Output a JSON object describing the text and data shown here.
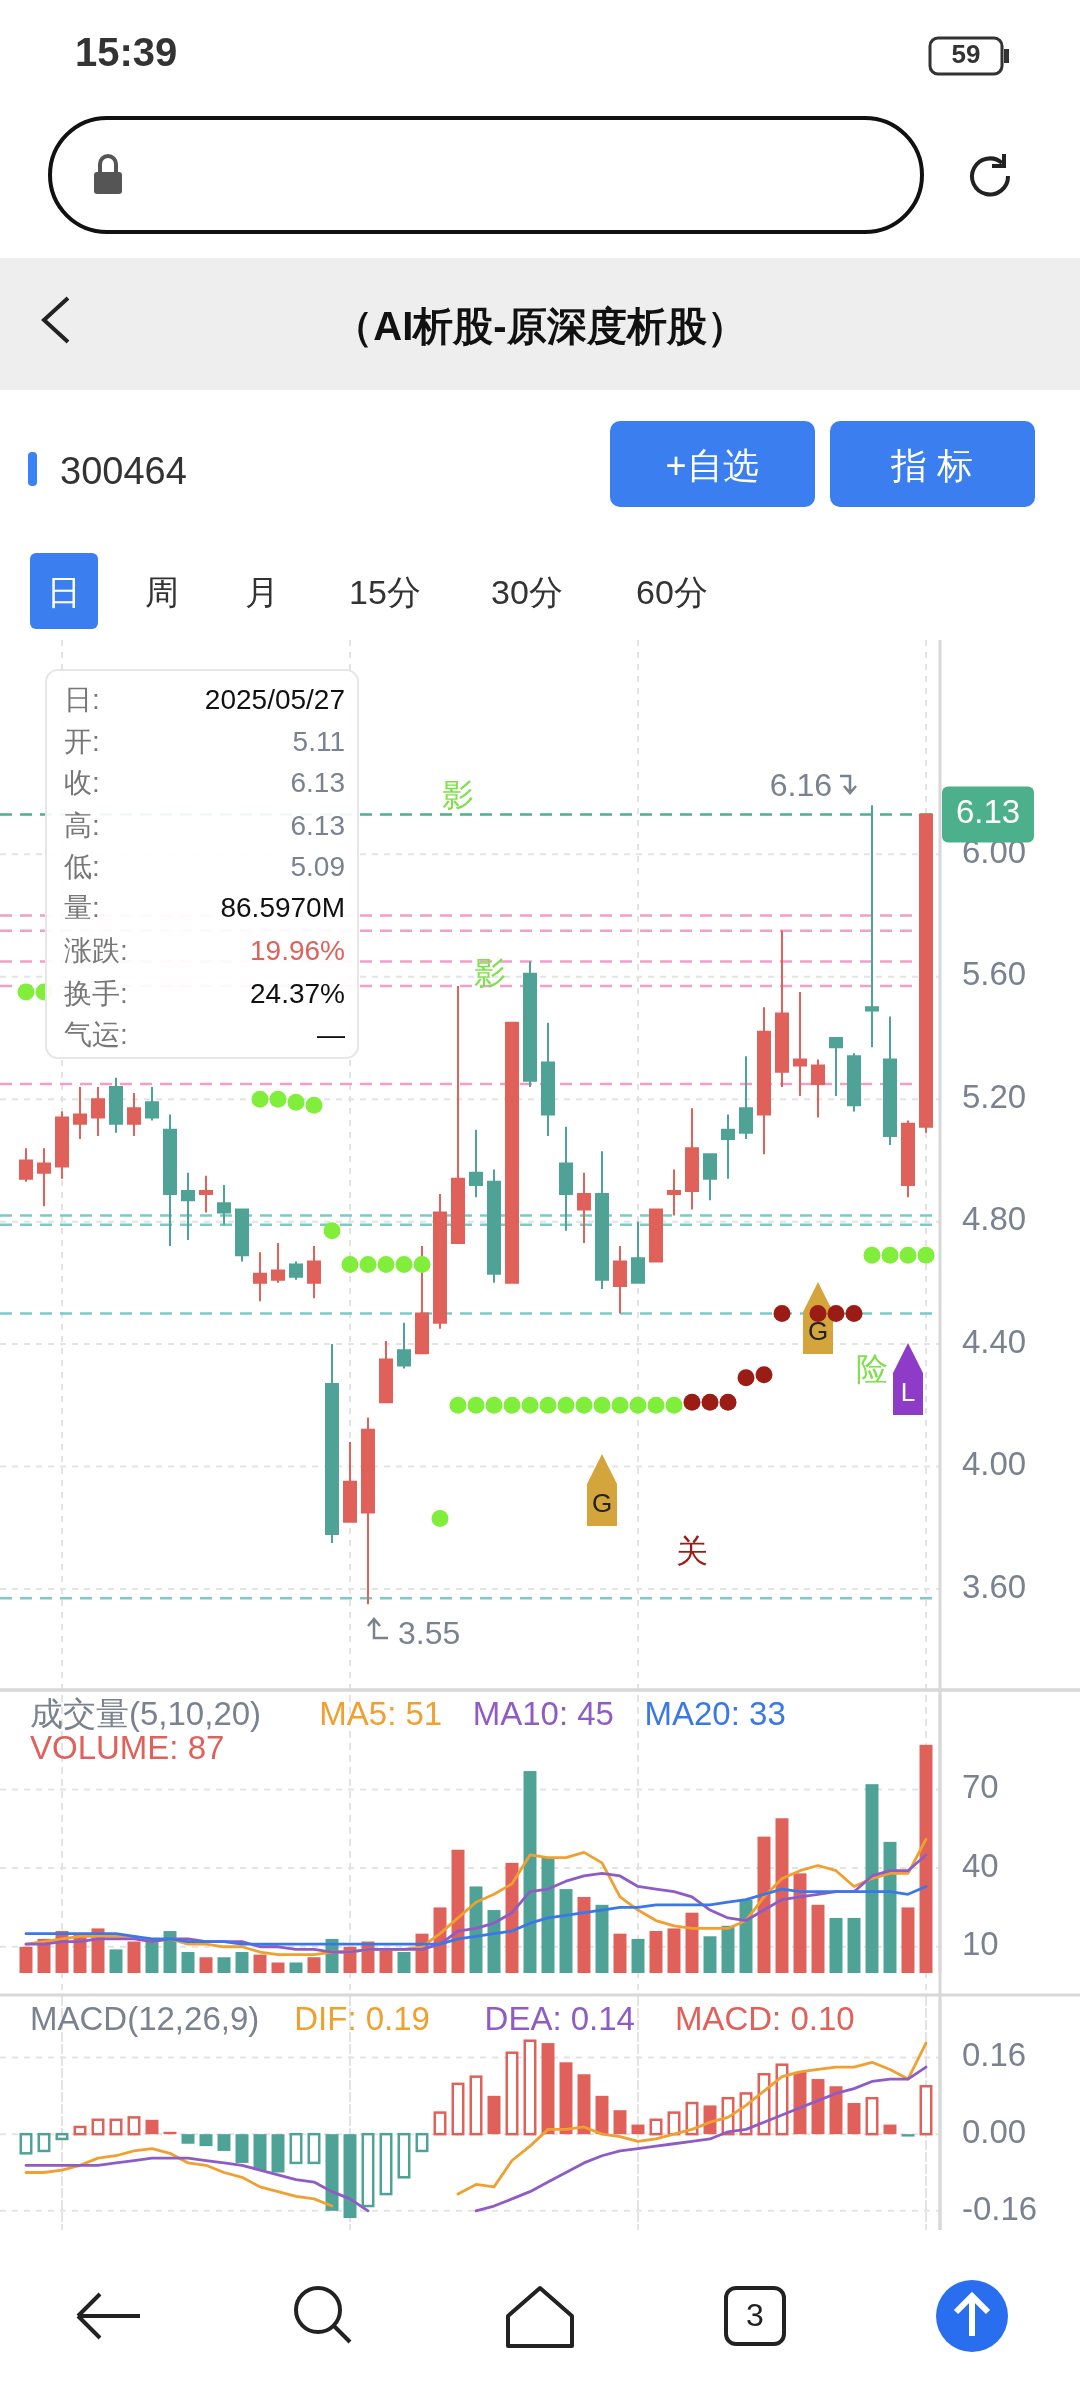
{
  "chart_data": [
    {
      "type": "other",
      "title": "（AI析股-原深度析股）",
      "annotations": [
        "15:39",
        "59",
        "300464",
        "+自选",
        "指 标",
        "日",
        "周",
        "月",
        "15分",
        "30分",
        "60分",
        "日:",
        "2025/05/27",
        "开:",
        "5.11",
        "收:",
        "6.13",
        "高:",
        "6.13",
        "低:",
        "5.09",
        "量:",
        "86.5970M",
        "涨跌:",
        "19.96%",
        "换手:",
        "24.37%",
        "气运:",
        "—",
        "3"
      ]
    },
    {
      "type": "candlestick",
      "categories": [
        null,
        null,
        null,
        null,
        null,
        null,
        null,
        null,
        null,
        null,
        null,
        null,
        null,
        null,
        null,
        null,
        null,
        null,
        null,
        null,
        null,
        null,
        null,
        null,
        null,
        null,
        null,
        null,
        null,
        null,
        null,
        null,
        null,
        null,
        null,
        null,
        null,
        null,
        null,
        null,
        null,
        null,
        null,
        null,
        null,
        null,
        null,
        null,
        null,
        null,
        null
      ],
      "ohlc": [
        [
          4.94,
          5.04,
          4.93,
          5.0
        ],
        [
          4.96,
          5.04,
          4.85,
          4.99
        ],
        [
          4.98,
          5.16,
          4.94,
          5.14
        ],
        [
          5.12,
          5.24,
          5.07,
          5.15
        ],
        [
          5.14,
          5.24,
          5.08,
          5.2
        ],
        [
          5.24,
          5.27,
          5.09,
          5.12
        ],
        [
          5.12,
          5.22,
          5.08,
          5.17
        ],
        [
          5.19,
          5.24,
          5.13,
          5.14
        ],
        [
          5.1,
          5.15,
          4.72,
          4.89
        ],
        [
          4.9,
          4.96,
          4.74,
          4.87
        ],
        [
          4.89,
          4.95,
          4.83,
          4.9
        ],
        [
          4.86,
          4.92,
          4.79,
          4.83
        ],
        [
          4.84,
          4.84,
          4.67,
          4.69
        ],
        [
          4.6,
          4.7,
          4.54,
          4.63
        ],
        [
          4.61,
          4.73,
          4.6,
          4.64
        ],
        [
          4.66,
          4.67,
          4.61,
          4.62
        ],
        [
          4.6,
          4.72,
          4.55,
          4.67
        ],
        [
          4.27,
          4.4,
          3.75,
          3.78
        ],
        [
          3.82,
          4.08,
          3.82,
          3.95
        ],
        [
          3.85,
          4.16,
          3.55,
          4.12
        ],
        [
          4.21,
          4.41,
          4.21,
          4.35
        ],
        [
          4.38,
          4.47,
          4.32,
          4.33
        ],
        [
          4.37,
          4.72,
          4.37,
          4.5
        ],
        [
          4.47,
          4.89,
          4.45,
          4.83
        ],
        [
          4.73,
          5.57,
          4.73,
          4.94
        ],
        [
          4.96,
          5.1,
          4.88,
          4.92
        ],
        [
          4.93,
          4.97,
          4.6,
          4.63
        ],
        [
          4.6,
          5.45,
          4.6,
          5.45
        ],
        [
          5.61,
          5.65,
          5.24,
          5.26
        ],
        [
          5.32,
          5.45,
          5.08,
          5.15
        ],
        [
          4.99,
          5.11,
          4.77,
          4.89
        ],
        [
          4.84,
          4.96,
          4.73,
          4.89
        ],
        [
          4.89,
          5.03,
          4.58,
          4.61
        ],
        [
          4.59,
          4.72,
          4.5,
          4.67
        ],
        [
          4.68,
          4.8,
          4.6,
          4.6
        ],
        [
          4.67,
          4.84,
          4.67,
          4.84
        ],
        [
          4.89,
          4.97,
          4.82,
          4.9
        ],
        [
          4.9,
          5.17,
          4.84,
          5.04
        ],
        [
          5.02,
          5.02,
          4.87,
          4.94
        ],
        [
          5.1,
          5.15,
          4.94,
          5.07
        ],
        [
          5.17,
          5.34,
          5.07,
          5.09
        ],
        [
          5.15,
          5.5,
          5.02,
          5.42
        ],
        [
          5.29,
          5.75,
          5.24,
          5.48
        ],
        [
          5.31,
          5.55,
          5.21,
          5.33
        ],
        [
          5.25,
          5.33,
          5.14,
          5.31
        ],
        [
          5.4,
          5.4,
          5.21,
          5.37
        ],
        [
          5.34,
          5.35,
          5.16,
          5.18
        ],
        [
          5.5,
          6.16,
          5.37,
          5.49
        ],
        [
          5.33,
          5.47,
          5.05,
          5.08
        ],
        [
          4.92,
          5.13,
          4.88,
          5.12
        ],
        [
          5.11,
          6.13,
          5.09,
          6.13
        ]
      ],
      "colors": [
        "#e0605a",
        "#e0605a",
        "#e0605a",
        "#e0605a",
        "#e0605a",
        "#4fa396",
        "#e0605a",
        "#4fa396",
        "#4fa396",
        "#4fa396",
        "#e0605a",
        "#4fa396",
        "#4fa396",
        "#e0605a",
        "#e0605a",
        "#4fa396",
        "#e0605a",
        "#4fa396",
        "#e0605a",
        "#e0605a",
        "#e0605a",
        "#4fa396",
        "#e0605a",
        "#e0605a",
        "#e0605a",
        "#4fa396",
        "#4fa396",
        "#e0605a",
        "#4fa396",
        "#4fa396",
        "#4fa396",
        "#e0605a",
        "#4fa396",
        "#e0605a",
        "#4fa396",
        "#e0605a",
        "#e0605a",
        "#e0605a",
        "#4fa396",
        "#4fa396",
        "#4fa396",
        "#e0605a",
        "#e0605a",
        "#e0605a",
        "#e0605a",
        "#4fa396",
        "#4fa396",
        "#4fa396",
        "#4fa396",
        "#e0605a",
        "#e0605a"
      ],
      "series": [
        {
          "type": "scatter",
          "marker": "circle",
          "color": "#80ee3a",
          "values": [
            5.55,
            5.55,
            null,
            null,
            null,
            null,
            null,
            null,
            null,
            null,
            null,
            null,
            null,
            5.2,
            5.2,
            5.19,
            5.18,
            4.77,
            4.66,
            4.66,
            4.66,
            4.66,
            4.66,
            3.83,
            4.2,
            4.2,
            4.2,
            4.2,
            4.2,
            4.2,
            4.2,
            4.2,
            4.2,
            4.2,
            4.2,
            4.2,
            4.2,
            null,
            null,
            null,
            null,
            null,
            null,
            null,
            null,
            null,
            null,
            4.69,
            4.69,
            4.69,
            4.69
          ]
        },
        {
          "type": "scatter",
          "marker": "circle",
          "color": "#9b1c14",
          "values": [
            null,
            null,
            null,
            null,
            null,
            null,
            null,
            null,
            null,
            null,
            null,
            null,
            null,
            null,
            null,
            null,
            null,
            null,
            null,
            null,
            null,
            null,
            null,
            null,
            null,
            null,
            null,
            null,
            null,
            null,
            null,
            null,
            null,
            null,
            null,
            null,
            null,
            4.21,
            4.21,
            4.21,
            4.29,
            4.3,
            4.5,
            null,
            4.5,
            4.5,
            4.5,
            null,
            null,
            null,
            null
          ]
        }
      ],
      "ylim": [
        3.27,
        6.7
      ],
      "yticks": [
        {
          "value": 3.6,
          "label": "3.60"
        },
        {
          "value": 4.0,
          "label": "4.00"
        },
        {
          "value": 4.4,
          "label": "4.40"
        },
        {
          "value": 4.8,
          "label": "4.80"
        },
        {
          "value": 5.2,
          "label": "5.20"
        },
        {
          "value": 5.6,
          "label": "5.60"
        },
        {
          "value": 6.0,
          "label": "6.00"
        }
      ],
      "grid": true,
      "ref_lines": [
        {
          "axis": "y",
          "value": 6.13,
          "label": "6.13",
          "color": "#4cb08c",
          "line_style": "dashed"
        },
        {
          "axis": "y",
          "value": 5.8,
          "color": "#f0a0c8",
          "line_style": "dashed"
        },
        {
          "axis": "y",
          "value": 5.75,
          "color": "#f0a0c8",
          "line_style": "dashed"
        },
        {
          "axis": "y",
          "value": 5.65,
          "color": "#f0a0c8",
          "line_style": "dashed"
        },
        {
          "axis": "y",
          "value": 5.57,
          "color": "#f0a0c8",
          "line_style": "dashed"
        },
        {
          "axis": "y",
          "value": 5.25,
          "color": "#f0a0c8",
          "line_style": "dashed"
        },
        {
          "axis": "y",
          "value": 4.82,
          "color": "#7ccac8",
          "line_style": "dashed"
        },
        {
          "axis": "y",
          "value": 4.79,
          "color": "#7ccac8",
          "line_style": "dashed"
        },
        {
          "axis": "y",
          "value": 4.5,
          "color": "#7ccac8",
          "line_style": "dashed"
        },
        {
          "axis": "y",
          "value": 3.57,
          "color": "#7ccac8",
          "line_style": "dashed"
        }
      ],
      "annotations": [
        "6.16",
        "3.55",
        "影",
        "影",
        "G",
        "关",
        "G",
        "险",
        "L"
      ]
    },
    {
      "type": "bar",
      "title": "成交量(5,10,20)",
      "categories": [
        null,
        null,
        null,
        null,
        null,
        null,
        null,
        null,
        null,
        null,
        null,
        null,
        null,
        null,
        null,
        null,
        null,
        null,
        null,
        null,
        null,
        null,
        null,
        null,
        null,
        null,
        null,
        null,
        null,
        null,
        null,
        null,
        null,
        null,
        null,
        null,
        null,
        null,
        null,
        null,
        null,
        null,
        null,
        null,
        null,
        null,
        null,
        null,
        null,
        null,
        null
      ],
      "series": [
        {
          "name": "MA5: 51",
          "type": "line",
          "color": "#f0a030",
          "values": [
            11,
            12,
            13,
            14,
            14,
            14,
            14,
            12,
            13,
            11,
            11,
            10,
            10,
            8,
            7,
            7,
            7,
            8,
            8,
            9,
            9,
            9,
            10,
            15,
            21,
            27,
            30,
            34,
            45,
            44,
            44,
            46,
            42,
            29,
            24,
            20,
            18,
            17,
            17,
            17,
            20,
            29,
            36,
            39,
            41,
            39,
            33,
            36,
            38,
            38,
            51
          ]
        },
        {
          "name": "MA10: 45",
          "type": "line",
          "color": "#8e5cc4",
          "values": [
            11,
            11,
            12,
            12,
            13,
            13,
            13,
            12,
            13,
            13,
            12,
            12,
            12,
            10,
            10,
            9,
            9,
            8,
            8,
            9,
            9,
            9,
            9,
            11,
            16,
            17,
            19,
            23,
            31,
            32,
            35,
            37,
            38,
            37,
            33,
            32,
            31,
            29,
            24,
            21,
            20,
            24,
            28,
            29,
            30,
            31,
            31,
            37,
            39,
            39,
            45
          ]
        },
        {
          "name": "MA20: 33",
          "type": "line",
          "color": "#3a78e8",
          "values": [
            15,
            15,
            15,
            15,
            15,
            15,
            14,
            13,
            13,
            12,
            12,
            12,
            11,
            11,
            11,
            11,
            11,
            11,
            11,
            11,
            11,
            11,
            11,
            11,
            13,
            14,
            15,
            16,
            19,
            21,
            22,
            23,
            24,
            25,
            25,
            26,
            26,
            26,
            26,
            27,
            28,
            30,
            32,
            31,
            31,
            31,
            31,
            31,
            31,
            30,
            33
          ]
        },
        {
          "name": "VOLUME: 87",
          "type": "bar",
          "color": "#e0605a",
          "colors": [
            "#e0605a",
            "#e0605a",
            "#e0605a",
            "#e0605a",
            "#e0605a",
            "#4fa396",
            "#e0605a",
            "#4fa396",
            "#4fa396",
            "#4fa396",
            "#e0605a",
            "#4fa396",
            "#4fa396",
            "#e0605a",
            "#e0605a",
            "#4fa396",
            "#e0605a",
            "#4fa396",
            "#e0605a",
            "#e0605a",
            "#e0605a",
            "#4fa396",
            "#e0605a",
            "#e0605a",
            "#e0605a",
            "#4fa396",
            "#4fa396",
            "#e0605a",
            "#4fa396",
            "#4fa396",
            "#4fa396",
            "#e0605a",
            "#4fa396",
            "#e0605a",
            "#4fa396",
            "#e0605a",
            "#e0605a",
            "#e0605a",
            "#4fa396",
            "#4fa396",
            "#4fa396",
            "#e0605a",
            "#e0605a",
            "#e0605a",
            "#e0605a",
            "#4fa396",
            "#4fa396",
            "#4fa396",
            "#4fa396",
            "#e0605a",
            "#e0605a"
          ],
          "values": [
            10,
            13,
            16,
            15,
            17,
            9,
            12,
            13,
            16,
            8,
            6,
            6,
            8,
            7,
            4,
            4,
            6,
            13,
            10,
            12,
            9,
            8,
            15,
            25,
            47,
            33,
            24,
            42,
            77,
            44,
            32,
            29,
            26,
            15,
            13,
            16,
            17,
            23,
            14,
            18,
            28,
            52,
            59,
            38,
            26,
            21,
            21,
            72,
            50,
            25,
            87
          ]
        }
      ],
      "ylim": [
        0,
        106
      ],
      "yticks": [
        10,
        40,
        70
      ],
      "grid": true,
      "legend": "top left"
    },
    {
      "type": "bar",
      "title": "MACD(12,26,9)",
      "categories": [
        null,
        null,
        null,
        null,
        null,
        null,
        null,
        null,
        null,
        null,
        null,
        null,
        null,
        null,
        null,
        null,
        null,
        null,
        null,
        null,
        null,
        null,
        null,
        null,
        null,
        null,
        null,
        null,
        null,
        null,
        null,
        null,
        null,
        null,
        null,
        null,
        null,
        null,
        null,
        null,
        null,
        null,
        null,
        null,
        null,
        null,
        null,
        null,
        null,
        null,
        null
      ],
      "series": [
        {
          "name": "DIF: 0.19",
          "type": "line",
          "color": "#f0a030",
          "values": [
            -0.08,
            -0.08,
            -0.075,
            -0.065,
            -0.05,
            -0.045,
            -0.035,
            -0.03,
            -0.04,
            -0.06,
            -0.065,
            -0.08,
            -0.09,
            -0.11,
            -0.12,
            -0.13,
            -0.135,
            -0.15,
            null,
            null,
            null,
            null,
            null,
            null,
            -0.125,
            -0.105,
            -0.11,
            -0.055,
            -0.025,
            0.01,
            0.01,
            0.015,
            0.0,
            -0.005,
            -0.015,
            -0.01,
            0.0,
            0.01,
            0.025,
            0.035,
            0.06,
            0.09,
            0.12,
            0.13,
            0.135,
            0.14,
            0.14,
            0.15,
            0.135,
            0.115,
            0.19
          ]
        },
        {
          "name": "DEA: 0.14",
          "type": "line",
          "color": "#8e5cc4",
          "values": [
            -0.065,
            -0.065,
            -0.065,
            -0.065,
            -0.065,
            -0.06,
            -0.055,
            -0.05,
            -0.05,
            -0.05,
            -0.055,
            -0.06,
            -0.065,
            -0.075,
            -0.085,
            -0.095,
            -0.1,
            -0.12,
            -0.135,
            -0.16,
            null,
            null,
            null,
            null,
            null,
            -0.16,
            -0.15,
            -0.135,
            -0.12,
            -0.1,
            -0.08,
            -0.06,
            -0.045,
            -0.035,
            -0.03,
            -0.025,
            -0.02,
            -0.015,
            -0.01,
            0.005,
            0.01,
            0.025,
            0.04,
            0.055,
            0.07,
            0.085,
            0.095,
            0.11,
            0.115,
            0.115,
            0.14
          ]
        },
        {
          "name": "MACD: 0.10",
          "type": "bar",
          "color": "#e0605a",
          "colors": [
            "#4fa396",
            "#4fa396",
            "#4fa396",
            "#e0605a",
            "#e0605a",
            "#e0605a",
            "#e0605a",
            "#e0605a",
            "#e0605a",
            "#4fa396",
            "#4fa396",
            "#4fa396",
            "#4fa396",
            "#4fa396",
            "#4fa396",
            "#4fa396",
            "#4fa396",
            "#4fa396",
            "#4fa396",
            "#4fa396",
            "#4fa396",
            "#4fa396",
            "#4fa396",
            "#e0605a",
            "#e0605a",
            "#e0605a",
            "#e0605a",
            "#e0605a",
            "#e0605a",
            "#e0605a",
            "#e0605a",
            "#e0605a",
            "#e0605a",
            "#e0605a",
            "#e0605a",
            "#e0605a",
            "#e0605a",
            "#e0605a",
            "#e0605a",
            "#e0605a",
            "#e0605a",
            "#e0605a",
            "#e0605a",
            "#e0605a",
            "#e0605a",
            "#e0605a",
            "#e0605a",
            "#e0605a",
            "#e0605a",
            "#4fa396",
            "#e0605a"
          ],
          "values": [
            -0.04,
            -0.035,
            -0.01,
            0.015,
            0.03,
            0.03,
            0.035,
            0.03,
            0.005,
            -0.02,
            -0.025,
            -0.035,
            -0.06,
            -0.075,
            -0.08,
            -0.06,
            -0.06,
            -0.16,
            -0.175,
            -0.15,
            -0.125,
            -0.09,
            -0.035,
            0.045,
            0.105,
            0.12,
            0.08,
            0.17,
            0.195,
            0.19,
            0.15,
            0.125,
            0.08,
            0.05,
            0.02,
            0.03,
            0.045,
            0.065,
            0.06,
            0.075,
            0.085,
            0.125,
            0.145,
            0.13,
            0.115,
            0.1,
            0.065,
            0.075,
            0.02,
            -0.005,
            0.1
          ]
        }
      ],
      "ylim": [
        -0.2,
        0.28
      ],
      "yticks": [
        {
          "value": -0.16,
          "label": "-0.16"
        },
        {
          "value": 0,
          "label": "0.00"
        },
        {
          "value": 0.16,
          "label": "0.16"
        }
      ],
      "grid": true,
      "legend": "top"
    }
  ]
}
